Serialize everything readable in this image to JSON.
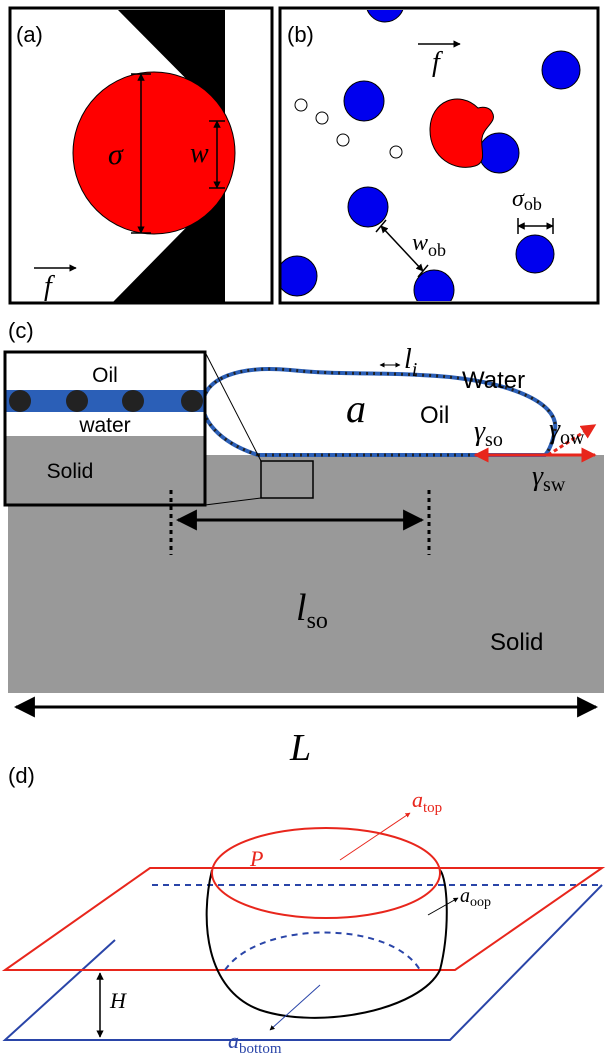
{
  "panel_a": {
    "label": "(a)",
    "sigma": "σ",
    "w": "w",
    "f": "f"
  },
  "panel_b": {
    "label": "(b)",
    "f": "f",
    "sigma_ob": {
      "symbol": "σ",
      "sub": "ob"
    },
    "w_ob": {
      "symbol": "w",
      "sub": "ob"
    }
  },
  "panel_c": {
    "label": "(c)",
    "l_i": {
      "symbol": "l",
      "sub": "i"
    },
    "water": "Water",
    "a": "a",
    "oil": "Oil",
    "gamma_ow": {
      "symbol": "γ",
      "sub": "ow"
    },
    "gamma_so": {
      "symbol": "γ",
      "sub": "so"
    },
    "gamma_sw": {
      "symbol": "γ",
      "sub": "sw"
    },
    "inset": {
      "oil": "Oil",
      "water": "water",
      "solid": "Solid"
    },
    "l_so": {
      "symbol": "l",
      "sub": "so"
    },
    "solid": "Solid",
    "L": "L"
  },
  "panel_d": {
    "label": "(d)",
    "a_top": {
      "symbol": "a",
      "sub": "top"
    },
    "P": "P",
    "a_oop": {
      "symbol": "a",
      "sub": "oop"
    },
    "H": "H",
    "a_bottom": {
      "symbol": "a",
      "sub": "bottom"
    }
  }
}
